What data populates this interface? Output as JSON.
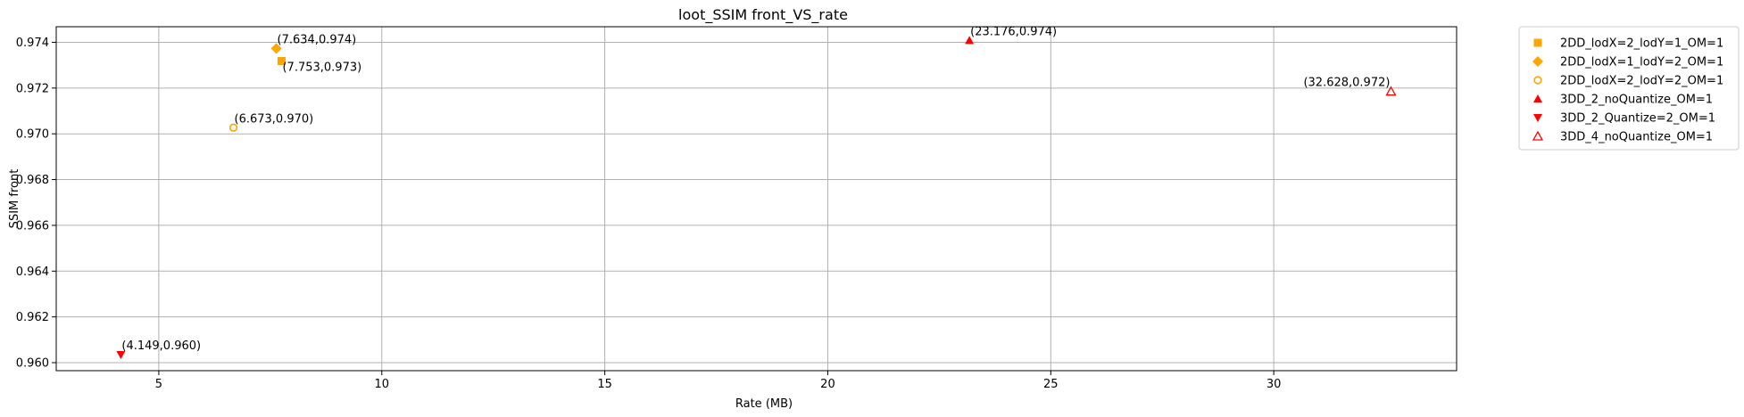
{
  "chart_data": {
    "type": "scatter",
    "title": "loot_SSIM front_VS_rate",
    "xlabel": "Rate (MB)",
    "ylabel": "SSIM front",
    "xlim": [
      2.7,
      34.1
    ],
    "ylim": [
      0.95965,
      0.97468
    ],
    "xticks": [
      5,
      10,
      15,
      20,
      25,
      30
    ],
    "yticks": [
      0.96,
      0.962,
      0.964,
      0.966,
      0.968,
      0.97,
      0.972,
      0.974
    ],
    "grid": true,
    "legend_position": "outside-top-right",
    "series": [
      {
        "name": "2DD_lodX=2_lodY=1_OM=1",
        "marker": "square",
        "color": "#FFA500",
        "points": [
          {
            "x": 7.753,
            "y": 0.97318,
            "label": "(7.753,0.973)",
            "label_pos": "below-right"
          }
        ]
      },
      {
        "name": "2DD_lodX=1_lodY=2_OM=1",
        "marker": "diamond",
        "color": "#FFA500",
        "points": [
          {
            "x": 7.634,
            "y": 0.97373,
            "label": "(7.634,0.974)",
            "label_pos": "right"
          }
        ]
      },
      {
        "name": "2DD_lodX=2_lodY=2_OM=1",
        "marker": "octagon-hollow",
        "color": "#FFA500",
        "points": [
          {
            "x": 6.673,
            "y": 0.97027,
            "label": "(6.673,0.970)",
            "label_pos": "right"
          }
        ]
      },
      {
        "name": "3DD_2_noQuantize_OM=1",
        "marker": "triangle-up",
        "color": "#FF0000",
        "points": [
          {
            "x": 23.176,
            "y": 0.97408,
            "label": "(23.176,0.974)",
            "label_pos": "right"
          }
        ]
      },
      {
        "name": "3DD_2_Quantize=2_OM=1",
        "marker": "triangle-down",
        "color": "#FF0000",
        "points": [
          {
            "x": 4.149,
            "y": 0.96035,
            "label": "(4.149,0.960)",
            "label_pos": "right"
          }
        ]
      },
      {
        "name": "3DD_4_noQuantize_OM=1",
        "marker": "triangle-up-hollow",
        "color": "#FF0000",
        "points": [
          {
            "x": 32.628,
            "y": 0.97185,
            "label": "(32.628,0.972)",
            "label_pos": "left"
          }
        ]
      }
    ]
  }
}
